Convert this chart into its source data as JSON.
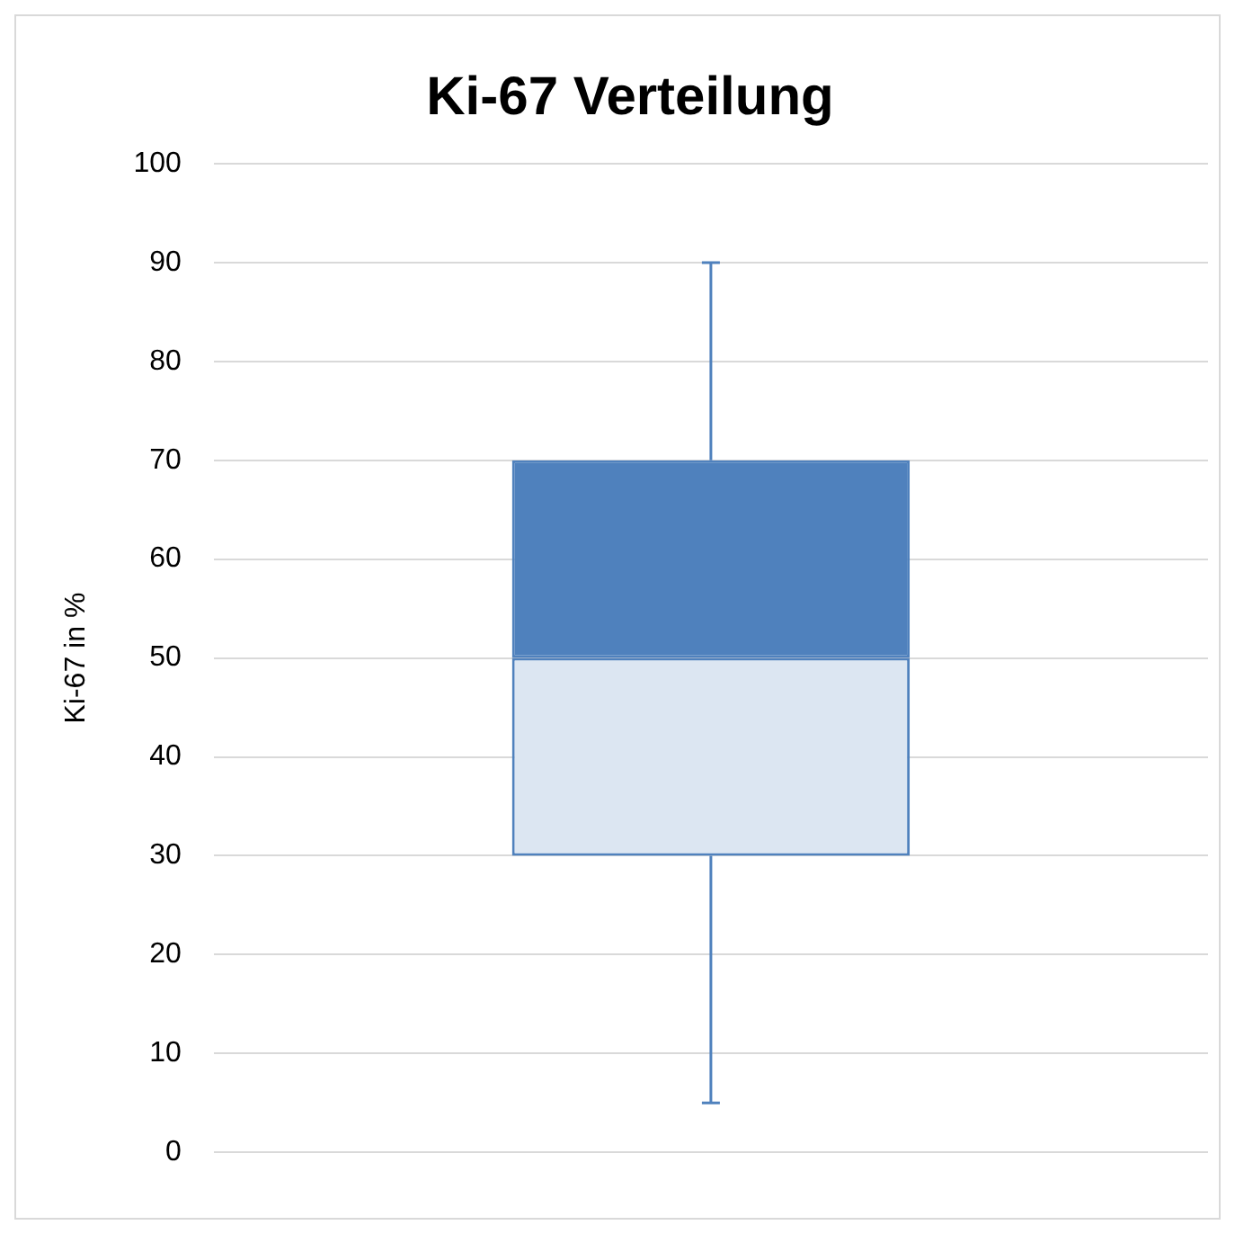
{
  "chart_data": {
    "type": "box",
    "title": "Ki-67 Verteilung",
    "ylabel": "Ki-67 in %",
    "categories": [
      null
    ],
    "boxes": [
      {
        "low": 5,
        "q1": 30,
        "median": 50,
        "q3": 70,
        "high": 90
      }
    ],
    "colors": [
      "#4f81bd"
    ],
    "color": "#dce6f2",
    "ylim": [
      0,
      100
    ],
    "yticks": [
      0,
      10,
      20,
      30,
      40,
      50,
      60,
      70,
      80,
      90,
      100
    ],
    "grid": "y",
    "legend": false
  }
}
